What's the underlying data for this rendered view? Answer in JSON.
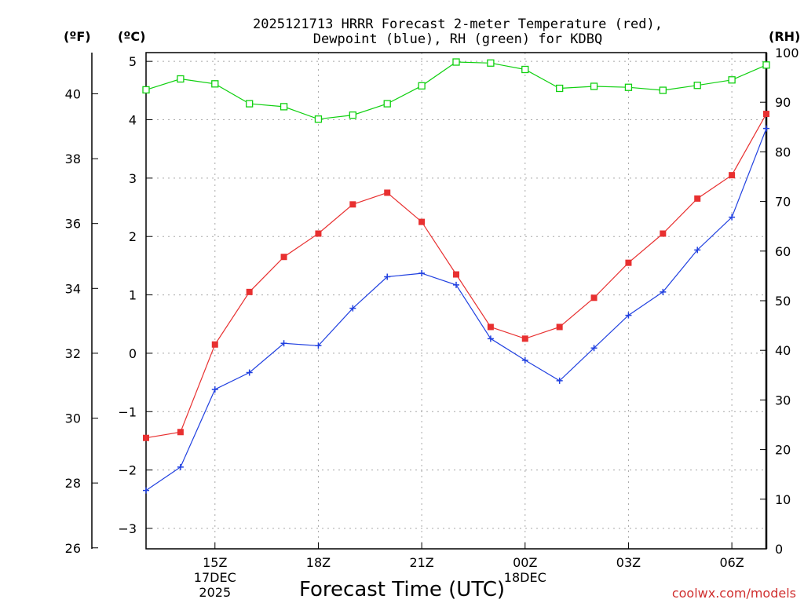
{
  "chart_data": {
    "type": "line",
    "title_line1": "2025121713 HRRR Forecast 2-meter Temperature (red),",
    "title_line2": "Dewpoint (blue), RH (green) for KDBQ",
    "xlabel": "Forecast Time (UTC)",
    "credit": "coolwx.com/models",
    "unit_f": "(ºF)",
    "unit_c": "(ºC)",
    "unit_rh": "(RH)",
    "x_hours": [
      13,
      14,
      15,
      16,
      17,
      18,
      19,
      20,
      21,
      22,
      23,
      24,
      25,
      26,
      27,
      28,
      29,
      30,
      31
    ],
    "xlim": [
      13,
      31
    ],
    "x_ticks": [
      {
        "hour": 15,
        "lines": [
          "15Z",
          "17DEC",
          "2025"
        ]
      },
      {
        "hour": 18,
        "lines": [
          "18Z"
        ]
      },
      {
        "hour": 21,
        "lines": [
          "21Z"
        ]
      },
      {
        "hour": 24,
        "lines": [
          "00Z",
          "18DEC"
        ]
      },
      {
        "hour": 27,
        "lines": [
          "03Z"
        ]
      },
      {
        "hour": 30,
        "lines": [
          "06Z"
        ]
      }
    ],
    "celsius_axis": {
      "ylim": [
        -3.35,
        5.15
      ],
      "ticks": [
        "−3",
        "−2",
        "−1",
        "0",
        "1",
        "2",
        "3",
        "4",
        "5"
      ],
      "tick_values": [
        -3,
        -2,
        -1,
        0,
        1,
        2,
        3,
        4,
        5
      ]
    },
    "fahrenheit_axis": {
      "ticks": [
        "26",
        "28",
        "30",
        "32",
        "34",
        "36",
        "38",
        "40"
      ],
      "tick_values": [
        26,
        28,
        30,
        32,
        34,
        36,
        38,
        40
      ]
    },
    "rh_axis": {
      "ylim": [
        0,
        100
      ],
      "ticks": [
        "0",
        "10",
        "20",
        "30",
        "40",
        "50",
        "60",
        "70",
        "80",
        "90",
        "100"
      ],
      "tick_values": [
        0,
        10,
        20,
        30,
        40,
        50,
        60,
        70,
        80,
        90,
        100
      ]
    },
    "series": [
      {
        "name": "Temperature",
        "axis": "celsius",
        "color": "#e83030",
        "marker": "filled-square",
        "values": [
          -1.45,
          -1.35,
          0.15,
          1.05,
          1.65,
          2.05,
          2.55,
          2.75,
          2.25,
          1.35,
          0.45,
          0.25,
          0.45,
          0.95,
          1.55,
          2.05,
          2.65,
          3.05,
          4.1
        ]
      },
      {
        "name": "Dewpoint",
        "axis": "celsius",
        "color": "#2040e0",
        "marker": "plus",
        "values": [
          -2.35,
          -1.95,
          -0.62,
          -0.33,
          0.17,
          0.13,
          0.77,
          1.31,
          1.37,
          1.17,
          0.25,
          -0.12,
          -0.47,
          0.09,
          0.65,
          1.05,
          1.77,
          2.33,
          3.85
        ]
      },
      {
        "name": "RH",
        "axis": "rh",
        "color": "#10d010",
        "marker": "open-square",
        "values": [
          92.5,
          94.7,
          93.7,
          89.7,
          89.1,
          86.6,
          87.4,
          89.7,
          93.3,
          98.1,
          97.9,
          96.6,
          92.8,
          93.2,
          93.0,
          92.4,
          93.4,
          94.5,
          97.5
        ]
      }
    ]
  }
}
